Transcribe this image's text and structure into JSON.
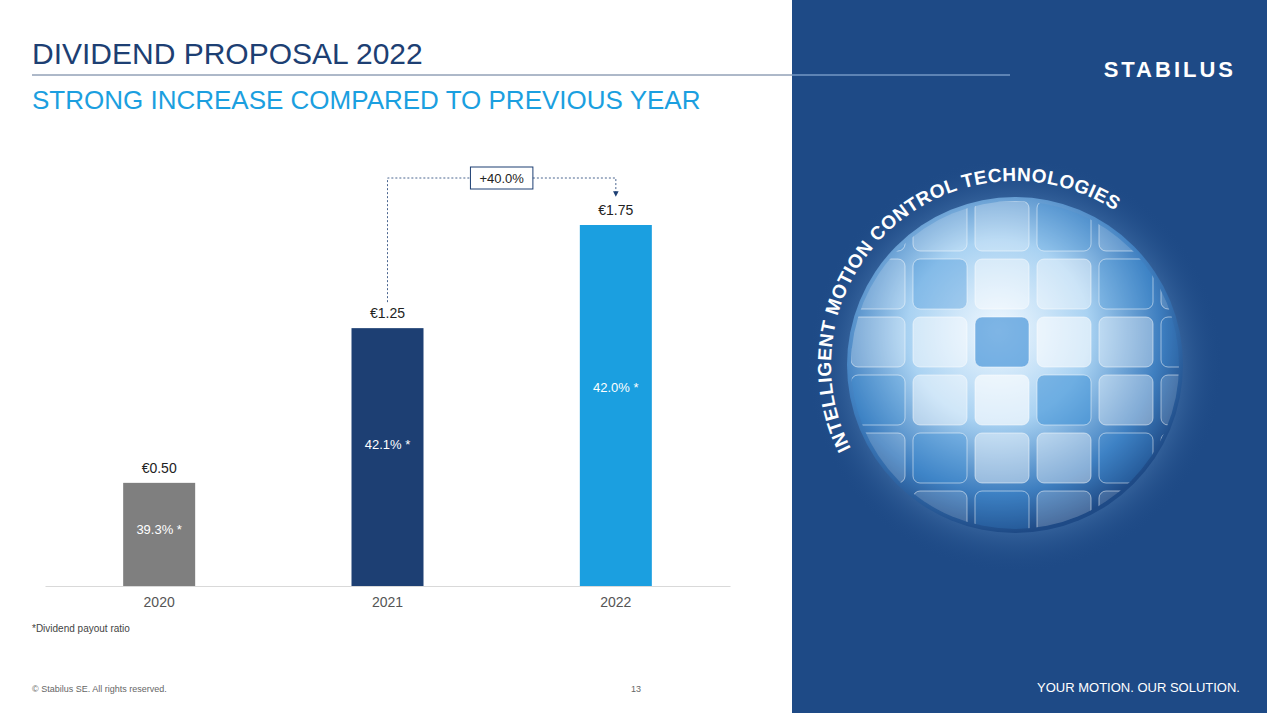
{
  "chart_data": {
    "type": "bar",
    "title": "DIVIDEND PROPOSAL 2022",
    "subtitle": "STRONG INCREASE COMPARED TO PREVIOUS YEAR",
    "categories": [
      "2020",
      "2021",
      "2022"
    ],
    "values": [
      0.5,
      1.25,
      1.75
    ],
    "value_labels": [
      "€0.50",
      "€1.25",
      "€1.75"
    ],
    "bar_notes": [
      "39.3% *",
      "42.1% *",
      "42.0% *"
    ],
    "colors": [
      "#7f7f7f",
      "#1d3f73",
      "#1b9fe0"
    ],
    "ylim": [
      0,
      1.75
    ],
    "data_labels": true,
    "tick_labels": "x",
    "grid": false,
    "annotations": [
      {
        "text": "+40.0%",
        "from": "2021",
        "to": "2022"
      }
    ],
    "footnote": "*Dividend payout ratio"
  },
  "page": {
    "copyright": "© Stabilus SE. All rights reserved.",
    "page_number": "13",
    "logo": "STABILUS",
    "globe_text": "INTELLIGENT MOTION CONTROL TECHNOLOGIES",
    "tagline": "YOUR MOTION. OUR SOLUTION."
  }
}
